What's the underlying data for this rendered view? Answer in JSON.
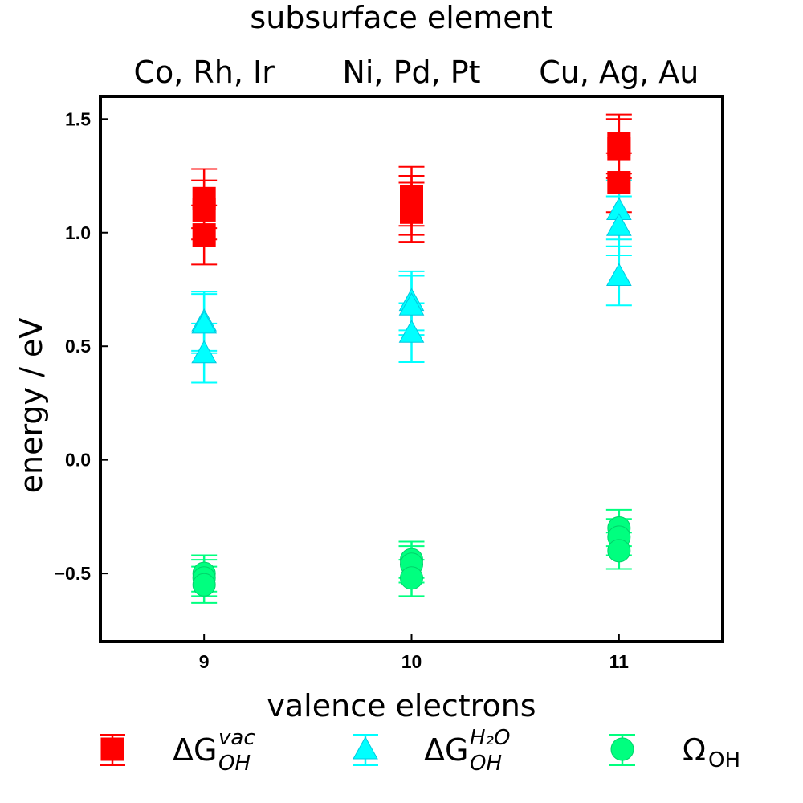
{
  "chart_data": {
    "type": "scatter",
    "top_title": "subsurface element",
    "group_labels": [
      "Co, Rh, Ir",
      "Ni, Pd, Pt",
      "Cu, Ag, Au"
    ],
    "xlabel": "valence electrons",
    "ylabel": "energy / eV",
    "xlim": [
      8.5,
      11.5
    ],
    "ylim": [
      -0.8,
      1.6
    ],
    "x_ticks": [
      9,
      10,
      11
    ],
    "y_ticks": [
      1.5,
      1.0,
      0.5,
      0.0,
      -0.5
    ],
    "y_tick_labels": [
      "1.5",
      "1.0",
      "0.5",
      "0.0",
      "−0.5"
    ],
    "grid": false,
    "legend_position": "bottom",
    "series": [
      {
        "key": "dG_vac",
        "marker": "square",
        "color": "#ff0000",
        "points": [
          {
            "x": 9,
            "y": 1.15,
            "err": 0.13
          },
          {
            "x": 9,
            "y": 1.1,
            "err": 0.13
          },
          {
            "x": 9,
            "y": 0.99,
            "err": 0.13
          },
          {
            "x": 10,
            "y": 1.16,
            "err": 0.13
          },
          {
            "x": 10,
            "y": 1.12,
            "err": 0.13
          },
          {
            "x": 10,
            "y": 1.09,
            "err": 0.13
          },
          {
            "x": 11,
            "y": 1.39,
            "err": 0.13
          },
          {
            "x": 11,
            "y": 1.37,
            "err": 0.13
          },
          {
            "x": 11,
            "y": 1.22,
            "err": 0.13
          }
        ]
      },
      {
        "key": "dG_h2o",
        "marker": "triangle",
        "color": "#00ffff",
        "points": [
          {
            "x": 9,
            "y": 0.61,
            "err": 0.13
          },
          {
            "x": 9,
            "y": 0.6,
            "err": 0.13
          },
          {
            "x": 9,
            "y": 0.47,
            "err": 0.13
          },
          {
            "x": 10,
            "y": 0.7,
            "err": 0.13
          },
          {
            "x": 10,
            "y": 0.68,
            "err": 0.13
          },
          {
            "x": 10,
            "y": 0.56,
            "err": 0.13
          },
          {
            "x": 11,
            "y": 1.1,
            "err": 0.13
          },
          {
            "x": 11,
            "y": 1.03,
            "err": 0.13
          },
          {
            "x": 11,
            "y": 0.81,
            "err": 0.13
          }
        ]
      },
      {
        "key": "omega_oh",
        "marker": "circle",
        "color": "#00ff7f",
        "points": [
          {
            "x": 9,
            "y": -0.5,
            "err": 0.08
          },
          {
            "x": 9,
            "y": -0.52,
            "err": 0.08
          },
          {
            "x": 9,
            "y": -0.55,
            "err": 0.08
          },
          {
            "x": 10,
            "y": -0.44,
            "err": 0.08
          },
          {
            "x": 10,
            "y": -0.46,
            "err": 0.08
          },
          {
            "x": 10,
            "y": -0.52,
            "err": 0.08
          },
          {
            "x": 11,
            "y": -0.3,
            "err": 0.08
          },
          {
            "x": 11,
            "y": -0.34,
            "err": 0.08
          },
          {
            "x": 11,
            "y": -0.4,
            "err": 0.08
          }
        ]
      }
    ],
    "legend": [
      {
        "marker": "square",
        "color": "#ff0000",
        "main": "ΔG",
        "sup": "vac",
        "sub": "OH"
      },
      {
        "marker": "triangle",
        "color": "#00ffff",
        "main": "ΔG",
        "sup": "H₂O",
        "sub": "OH"
      },
      {
        "marker": "circle",
        "color": "#00ff7f",
        "main": "Ω",
        "sup": "",
        "sub": "OH"
      }
    ]
  }
}
